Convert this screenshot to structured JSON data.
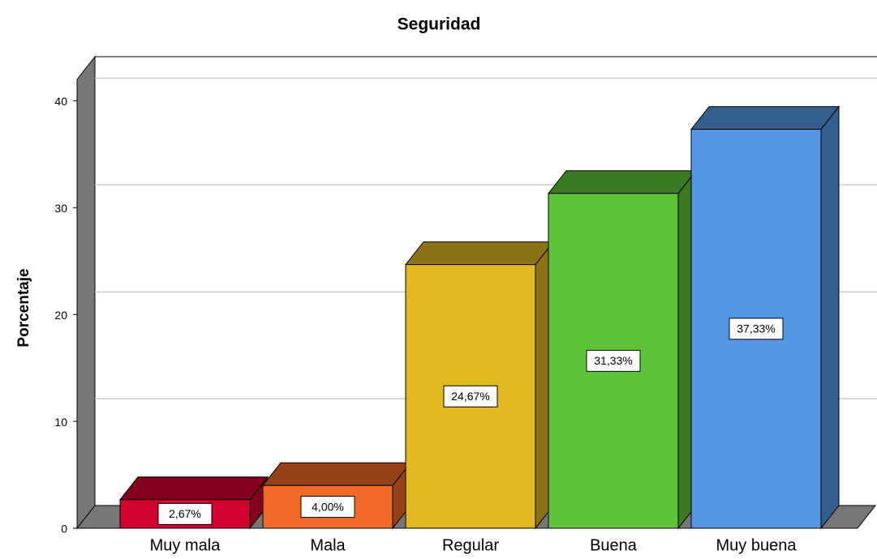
{
  "chart_data": {
    "type": "bar3d",
    "title": "Seguridad",
    "y_label": "Porcentaje",
    "categories": [
      "Muy mala",
      "Mala",
      "Regular",
      "Buena",
      "Muy buena"
    ],
    "values": [
      2.67,
      4.0,
      24.67,
      31.33,
      37.33
    ],
    "value_labels": [
      "2,67%",
      "4,00%",
      "24,67%",
      "31,33%",
      "37,33%"
    ],
    "colors": [
      "#d2002e",
      "#f06a28",
      "#e0b820",
      "#5fc337",
      "#5597e5"
    ],
    "ylim": [
      0,
      42
    ],
    "yticks": [
      0,
      10,
      20,
      30,
      40
    ],
    "grid": true
  }
}
